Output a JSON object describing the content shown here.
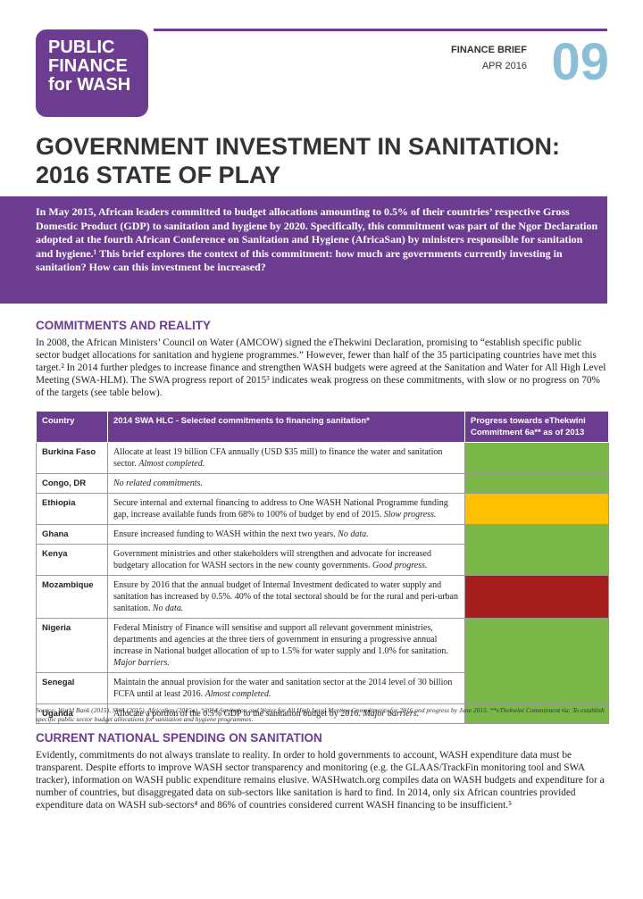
{
  "header": {
    "logo": [
      "PUBLIC",
      "FINANCE",
      "for WASH"
    ],
    "series": "FINANCE BRIEF",
    "date": "APR 2016",
    "number": "09"
  },
  "title": [
    "GOVERNMENT INVESTMENT IN SANITATION:",
    "2016 STATE OF PLAY"
  ],
  "intro": "In May 2015, African leaders committed to budget allocations amounting to 0.5% of their countries’ respective Gross Domestic Product (GDP) to sanitation and hygiene by 2020. Specifically, this commitment was part of the Ngor Declaration adopted at the fourth African Conference on Sanitation and Hygiene (AfricaSan) by ministers responsible for sanitation and hygiene.¹ This brief explores the context of this commitment: how much are governments currently investing in sanitation? How can this investment be increased?",
  "sections": [
    {
      "heading": "COMMITMENTS AND REALITY",
      "body": "In 2008, the African Ministers’ Council on Water (AMCOW) signed the eThekwini Declaration, promising to “establish specific public sector budget allocations for sanitation and hygiene programmes.” However, fewer than half of the 35 participating countries have met this target.² In 2014 further pledges to increase finance and strengthen WASH budgets were agreed at the Sanitation and Water for All High Level Meeting (SWA-HLM). The SWA progress report of 2015³ indicates weak progress on these commitments, with slow or no progress on 70% of the targets (see table below)."
    },
    {
      "heading": "CURRENT NATIONAL SPENDING ON SANITATION",
      "body": "Evidently, commitments do not always translate to reality. In order to hold governments to account, WASH expenditure data must be transparent. Despite efforts to improve WASH sector transparency and monitoring (e.g. the GLAAS/TrackFin monitoring tool and SWA tracker), information on WASH public expenditure remains elusive. WASHwatch.org compiles data on WASH budgets and expenditure for a number of countries, but disaggregated data on sub-sectors like sanitation is hard to find. In 2014, only six African countries provided expenditure data on WASH sub-sectors⁴ and 86% of countries considered current WASH financing to be insufficient.⁵"
    }
  ],
  "table": {
    "columns": [
      "Country",
      "2014 SWA HLC - Selected commitments to financing sanitation*",
      "Progress towards eThekwini Commitment 6a** as of 2013"
    ],
    "rows": [
      {
        "country": "Burkina Faso",
        "text": "Allocate at least 19 billion CFA annually (USD $35 mill) to finance the water and sanitation sector.",
        "status": "Almost completed.",
        "color": "#7ab648"
      },
      {
        "country": "Congo, DR",
        "status": "No related commitments.",
        "color": "#7ab648"
      },
      {
        "country": "Ethiopia",
        "text": "Secure internal and external financing to address to One WASH National Programme funding gap, increase available funds from 68% to 100% of budget by end of 2015.",
        "status": "Slow progress.",
        "color": "#ffc000"
      },
      {
        "country": "Ghana",
        "text": "Ensure increased funding to WASH within the next two years.",
        "status": "No data.",
        "color": "#7ab648"
      },
      {
        "country": "Kenya",
        "text": "Government ministries and other stakeholders will strengthen and advocate for increased budgetary allocation for WASH sectors in the new county governments.",
        "status": "Good progress.",
        "color": "#7ab648"
      },
      {
        "country": "Mozambique",
        "text": "Ensure by 2016 that the annual budget of Internal Investment dedicated to water supply and sanitation has increased by 0.5%. 40% of the total sectoral should be for the rural and peri-urban sanitation.",
        "status": "No data.",
        "color": "#a51d1d"
      },
      {
        "country": "Nigeria",
        "text": "Federal Ministry of Finance will sensitise and support all relevant government ministries, departments and agencies at the three tiers of government in ensuring a progressive annual increase in National budget allocation of up to 1.5% for water supply and 1.0% for sanitation.",
        "status": "Major barriers.",
        "color": "#7ab648"
      },
      {
        "country": "Senegal",
        "text": "Maintain the annual provision for the water and sanitation sector at the 2014 level of 30 billion FCFA until at least 2016.",
        "status": "Almost completed.",
        "color": "#7ab648"
      },
      {
        "country": "Uganda",
        "text": "Allocate a portion of the 0.5% GDP to the sanitation budget by 2016.",
        "status": "Major barriers.",
        "color": "#7ab648"
      }
    ],
    "source": "Source: World Bank (2015), SWA (2015), AfricaSan (2015a). “2014 Sanitation and Water for All High Level Meeting Commitments for 2016 and progress by June 2015. **eThekwini Commitment 6a: To establish specific public sector budget allocations for sanitation and hygiene programmes."
  }
}
